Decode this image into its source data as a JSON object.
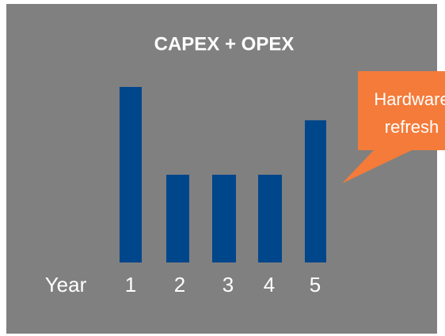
{
  "chart_data": {
    "type": "bar",
    "title": "CAPEX + OPEX",
    "x_label": "Year",
    "categories": [
      "1",
      "2",
      "3",
      "4",
      "5"
    ],
    "values": [
      100,
      50,
      50,
      50,
      81
    ],
    "color": "#00468b",
    "ylim": [
      0,
      100
    ],
    "annotation": {
      "lines": [
        "Hardware",
        "refresh"
      ],
      "color": "#f47b3a"
    }
  }
}
